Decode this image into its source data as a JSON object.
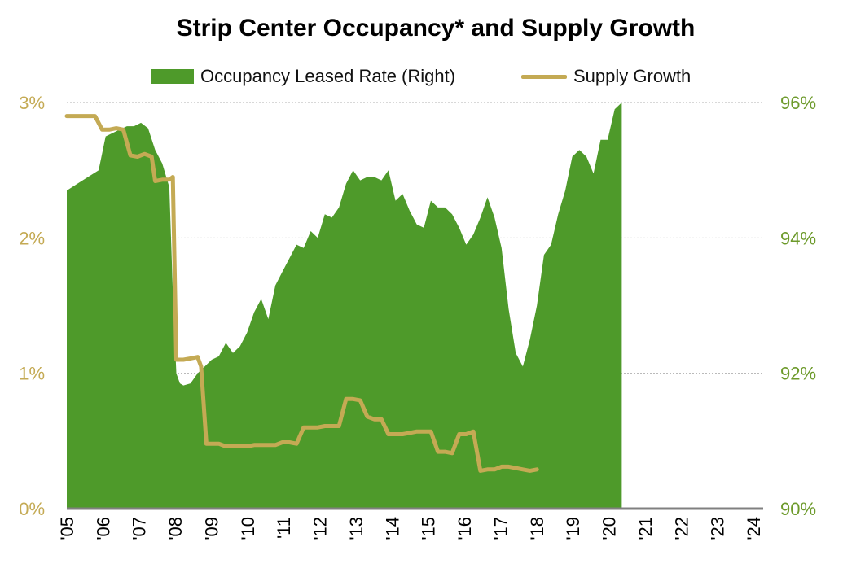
{
  "chart_data": {
    "type": "area",
    "title": "Strip Center Occupancy* and Supply Growth",
    "series": [
      {
        "name": "Occupancy Leased Rate (Right)",
        "kind": "area",
        "axis": "right",
        "color": "#4e9a2a",
        "points": [
          [
            2005.0,
            94.7
          ],
          [
            2005.3,
            94.8
          ],
          [
            2005.6,
            94.9
          ],
          [
            2005.9,
            95.0
          ],
          [
            2006.1,
            95.5
          ],
          [
            2006.3,
            95.55
          ],
          [
            2006.5,
            95.6
          ],
          [
            2006.7,
            95.65
          ],
          [
            2006.9,
            95.65
          ],
          [
            2007.1,
            95.7
          ],
          [
            2007.3,
            95.62
          ],
          [
            2007.5,
            95.3
          ],
          [
            2007.7,
            95.1
          ],
          [
            2007.9,
            94.75
          ],
          [
            2008.0,
            93.2
          ],
          [
            2008.1,
            92.0
          ],
          [
            2008.2,
            91.85
          ],
          [
            2008.3,
            91.82
          ],
          [
            2008.5,
            91.85
          ],
          [
            2008.7,
            92.0
          ],
          [
            2008.9,
            92.1
          ],
          [
            2009.1,
            92.2
          ],
          [
            2009.3,
            92.25
          ],
          [
            2009.5,
            92.45
          ],
          [
            2009.7,
            92.3
          ],
          [
            2009.9,
            92.4
          ],
          [
            2010.1,
            92.6
          ],
          [
            2010.3,
            92.9
          ],
          [
            2010.5,
            93.1
          ],
          [
            2010.7,
            92.8
          ],
          [
            2010.9,
            93.3
          ],
          [
            2011.1,
            93.5
          ],
          [
            2011.3,
            93.7
          ],
          [
            2011.5,
            93.9
          ],
          [
            2011.7,
            93.85
          ],
          [
            2011.9,
            94.1
          ],
          [
            2012.1,
            94.0
          ],
          [
            2012.3,
            94.35
          ],
          [
            2012.5,
            94.3
          ],
          [
            2012.7,
            94.45
          ],
          [
            2012.9,
            94.8
          ],
          [
            2013.1,
            95.0
          ],
          [
            2013.3,
            94.85
          ],
          [
            2013.5,
            94.9
          ],
          [
            2013.7,
            94.9
          ],
          [
            2013.9,
            94.85
          ],
          [
            2014.1,
            95.0
          ],
          [
            2014.3,
            94.55
          ],
          [
            2014.5,
            94.65
          ],
          [
            2014.7,
            94.4
          ],
          [
            2014.9,
            94.2
          ],
          [
            2015.1,
            94.15
          ],
          [
            2015.3,
            94.55
          ],
          [
            2015.5,
            94.45
          ],
          [
            2015.7,
            94.45
          ],
          [
            2015.9,
            94.35
          ],
          [
            2016.1,
            94.15
          ],
          [
            2016.3,
            93.9
          ],
          [
            2016.5,
            94.05
          ],
          [
            2016.7,
            94.3
          ],
          [
            2016.9,
            94.6
          ],
          [
            2017.1,
            94.3
          ],
          [
            2017.3,
            93.85
          ],
          [
            2017.5,
            92.95
          ],
          [
            2017.7,
            92.3
          ],
          [
            2017.9,
            92.1
          ],
          [
            2018.1,
            92.5
          ],
          [
            2018.3,
            93.0
          ],
          [
            2018.5,
            93.75
          ],
          [
            2018.7,
            93.9
          ],
          [
            2018.9,
            94.35
          ],
          [
            2019.1,
            94.7
          ],
          [
            2019.3,
            95.2
          ],
          [
            2019.5,
            95.3
          ],
          [
            2019.7,
            95.2
          ],
          [
            2019.9,
            94.95
          ],
          [
            2020.1,
            95.45
          ],
          [
            2020.3,
            95.45
          ],
          [
            2020.5,
            95.9
          ],
          [
            2020.7,
            96.0
          ]
        ]
      },
      {
        "name": "Supply Growth",
        "kind": "line",
        "axis": "left",
        "color": "#c4aa54",
        "points": [
          [
            2005.0,
            2.9
          ],
          [
            2005.3,
            2.9
          ],
          [
            2005.6,
            2.9
          ],
          [
            2005.8,
            2.9
          ],
          [
            2006.0,
            2.8
          ],
          [
            2006.2,
            2.8
          ],
          [
            2006.4,
            2.81
          ],
          [
            2006.6,
            2.8
          ],
          [
            2006.8,
            2.61
          ],
          [
            2007.0,
            2.6
          ],
          [
            2007.2,
            2.62
          ],
          [
            2007.4,
            2.6
          ],
          [
            2007.5,
            2.42
          ],
          [
            2007.7,
            2.43
          ],
          [
            2007.9,
            2.43
          ],
          [
            2008.0,
            2.45
          ],
          [
            2008.1,
            1.1
          ],
          [
            2008.3,
            1.1
          ],
          [
            2008.5,
            1.11
          ],
          [
            2008.7,
            1.12
          ],
          [
            2008.8,
            1.05
          ],
          [
            2008.95,
            0.48
          ],
          [
            2009.1,
            0.48
          ],
          [
            2009.3,
            0.48
          ],
          [
            2009.5,
            0.46
          ],
          [
            2009.7,
            0.46
          ],
          [
            2009.9,
            0.46
          ],
          [
            2010.1,
            0.46
          ],
          [
            2010.3,
            0.47
          ],
          [
            2010.5,
            0.47
          ],
          [
            2010.7,
            0.47
          ],
          [
            2010.9,
            0.47
          ],
          [
            2011.1,
            0.49
          ],
          [
            2011.3,
            0.49
          ],
          [
            2011.5,
            0.48
          ],
          [
            2011.7,
            0.6
          ],
          [
            2011.9,
            0.6
          ],
          [
            2012.1,
            0.6
          ],
          [
            2012.3,
            0.61
          ],
          [
            2012.5,
            0.61
          ],
          [
            2012.7,
            0.61
          ],
          [
            2012.9,
            0.81
          ],
          [
            2013.1,
            0.81
          ],
          [
            2013.3,
            0.8
          ],
          [
            2013.5,
            0.68
          ],
          [
            2013.7,
            0.66
          ],
          [
            2013.9,
            0.66
          ],
          [
            2014.1,
            0.55
          ],
          [
            2014.3,
            0.55
          ],
          [
            2014.5,
            0.55
          ],
          [
            2014.7,
            0.56
          ],
          [
            2014.9,
            0.57
          ],
          [
            2015.1,
            0.57
          ],
          [
            2015.3,
            0.57
          ],
          [
            2015.5,
            0.42
          ],
          [
            2015.7,
            0.42
          ],
          [
            2015.9,
            0.41
          ],
          [
            2016.1,
            0.55
          ],
          [
            2016.3,
            0.55
          ],
          [
            2016.5,
            0.57
          ],
          [
            2016.7,
            0.28
          ],
          [
            2016.9,
            0.29
          ],
          [
            2017.1,
            0.29
          ],
          [
            2017.3,
            0.31
          ],
          [
            2017.5,
            0.31
          ],
          [
            2017.7,
            0.3
          ],
          [
            2017.9,
            0.29
          ],
          [
            2018.1,
            0.28
          ],
          [
            2018.3,
            0.29
          ]
        ]
      }
    ],
    "x_ticks": [
      "'05",
      "'06",
      "'07",
      "'08",
      "'09",
      "'10",
      "'11",
      "'12",
      "'13",
      "'14",
      "'15",
      "'16",
      "'17",
      "'18",
      "'19",
      "'20",
      "'21",
      "'22",
      "'23",
      "'24"
    ],
    "y_left": {
      "ticks": [
        "0%",
        "1%",
        "2%",
        "3%"
      ],
      "range": [
        0,
        3
      ],
      "color": "#c4aa54"
    },
    "y_right": {
      "ticks": [
        "90%",
        "92%",
        "94%",
        "96%"
      ],
      "range": [
        90,
        96
      ],
      "color": "#6d9a2b"
    },
    "grid": true,
    "legend_position": "top"
  }
}
